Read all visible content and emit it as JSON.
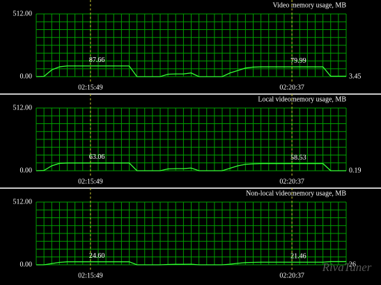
{
  "chart_data": [
    {
      "type": "line",
      "title": "Video memory usage, MB",
      "categories": [
        null,
        null,
        null,
        null,
        null,
        null,
        null,
        "02:15:49",
        null,
        null,
        null,
        null,
        null,
        null,
        null,
        null,
        null,
        null,
        null,
        null,
        null,
        null,
        null,
        null,
        null,
        null,
        null,
        null,
        null,
        null,
        null,
        null,
        null,
        "02:20:37",
        null,
        null,
        null,
        null,
        null,
        null,
        null
      ],
      "series": [
        {
          "color": "#33ff33",
          "values": [
            0,
            2,
            55,
            80,
            87.66,
            87.66,
            87.66,
            87.66,
            87.66,
            87.66,
            87.66,
            87.66,
            87.66,
            0,
            0,
            0,
            0,
            20,
            22,
            22,
            30,
            0,
            0,
            0,
            0,
            30,
            50,
            70,
            78,
            79.99,
            79.99,
            79.99,
            79.99,
            79.99,
            79.99,
            79.99,
            79.99,
            79.99,
            3.45,
            3.45,
            3.45
          ],
          "value_labels": null
        }
      ],
      "ylim": [
        0,
        512
      ],
      "yticks": [
        {
          "value": 0,
          "label": "0.00"
        },
        {
          "value": 512,
          "label": "512.00"
        }
      ],
      "grid": true
    },
    {
      "type": "line",
      "title": "Local videomemory usage, MB",
      "categories": [
        null,
        null,
        null,
        null,
        null,
        null,
        null,
        "02:15:49",
        null,
        null,
        null,
        null,
        null,
        null,
        null,
        null,
        null,
        null,
        null,
        null,
        null,
        null,
        null,
        null,
        null,
        null,
        null,
        null,
        null,
        null,
        null,
        null,
        null,
        "02:20:37",
        null,
        null,
        null,
        null,
        null,
        null,
        null
      ],
      "series": [
        {
          "color": "#33ff33",
          "values": [
            0,
            2,
            40,
            60,
            63.06,
            63.06,
            63.06,
            63.06,
            63.06,
            63.06,
            63.06,
            63.06,
            63.06,
            0,
            0,
            0,
            0,
            15,
            17,
            17,
            22,
            0,
            0,
            0,
            0,
            20,
            40,
            52,
            56,
            58.53,
            58.53,
            58.53,
            58.53,
            58.53,
            58.53,
            58.53,
            58.53,
            58.53,
            0.19,
            0.19,
            0.19
          ],
          "value_labels": null
        }
      ],
      "ylim": [
        0,
        512
      ],
      "yticks": [
        {
          "value": 0,
          "label": "0.00"
        },
        {
          "value": 512,
          "label": "512.00"
        }
      ],
      "grid": true
    },
    {
      "type": "line",
      "title": "Non-local videomemory usage, MB",
      "categories": [
        null,
        null,
        null,
        null,
        null,
        null,
        null,
        "02:15:49",
        null,
        null,
        null,
        null,
        null,
        null,
        null,
        null,
        null,
        null,
        null,
        null,
        null,
        null,
        null,
        null,
        null,
        null,
        null,
        null,
        null,
        null,
        null,
        null,
        null,
        "02:20:37",
        null,
        null,
        null,
        null,
        null,
        null,
        null
      ],
      "series": [
        {
          "color": "#33ff33",
          "values": [
            0,
            0,
            10,
            20,
            24.6,
            24.6,
            24.6,
            24.6,
            24.6,
            24.6,
            24.6,
            24.6,
            24.6,
            0,
            0,
            0,
            0,
            3,
            4,
            4,
            5,
            0,
            0,
            0,
            0,
            5,
            12,
            18,
            20,
            21.46,
            21.46,
            21.46,
            21.46,
            21.46,
            21.46,
            21.46,
            21.46,
            21.46,
            26,
            26,
            26
          ],
          "value_labels": [
            null,
            null,
            null,
            null,
            null,
            null,
            null,
            "24.60",
            null,
            null,
            null,
            null,
            null,
            null,
            null,
            null,
            null,
            null,
            null,
            null,
            null,
            null,
            null,
            null,
            null,
            null,
            null,
            null,
            null,
            null,
            null,
            null,
            null,
            "21.46",
            null,
            null,
            null,
            null,
            null,
            null,
            null
          ]
        }
      ],
      "ylim": [
        0,
        512
      ],
      "yticks": [
        {
          "value": 0,
          "label": "0.00"
        },
        {
          "value": 512,
          "label": "512.00"
        }
      ],
      "grid": true
    }
  ],
  "watermark": "RivaTuner"
}
